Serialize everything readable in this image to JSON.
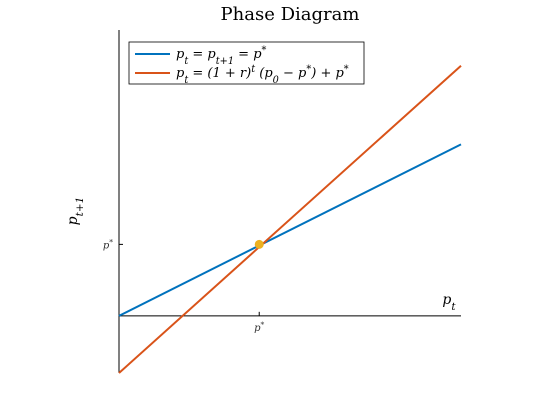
{
  "chart_data": {
    "type": "line",
    "title": "Phase Diagram",
    "xlabel": "p_t",
    "ylabel": "p_t+1",
    "xlim": [
      0,
      3
    ],
    "ylim": [
      -0.8,
      4
    ],
    "xticks": [
      {
        "value": 1.23,
        "label": "p*"
      }
    ],
    "yticks": [
      {
        "value": 1,
        "label": "p*"
      }
    ],
    "grid": false,
    "legend_position": "top-left",
    "series": [
      {
        "name": "p_t = p_t+1 = p*",
        "color": "#0072BD",
        "x": [
          0,
          3
        ],
        "y": [
          0,
          2.4
        ]
      },
      {
        "name": "p_t = (1 + r)^t (p_0 − p*) + p*",
        "color": "#D95319",
        "x": [
          0,
          3
        ],
        "y": [
          -0.8,
          3.5
        ]
      }
    ],
    "points": [
      {
        "name": "equilibrium",
        "color": "#EDB120",
        "x": 1.23,
        "y": 1
      }
    ]
  }
}
